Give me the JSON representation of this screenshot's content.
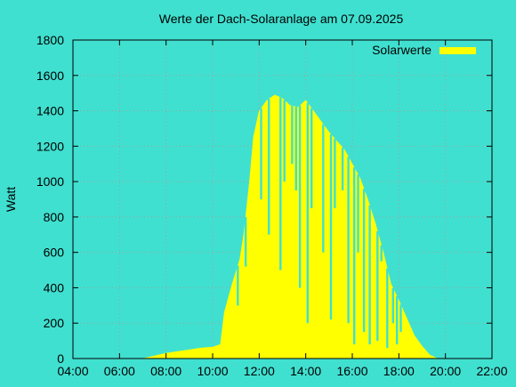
{
  "chart_data": {
    "type": "area",
    "title": "Werte der Dach-Solaranlage am 07.09.2025",
    "ylabel": "Watt",
    "xlabel": "",
    "legend": {
      "label": "Solarwerte",
      "placement": "top-right"
    },
    "colors": {
      "background": "#40E0D0",
      "series": "#FFFF00",
      "axis": "#000000",
      "grid": "#A0A0A0"
    },
    "grid": true,
    "xlim": [
      "04:00",
      "22:00"
    ],
    "ylim": [
      0,
      1800
    ],
    "xticks": [
      "04:00",
      "06:00",
      "08:00",
      "10:00",
      "12:00",
      "14:00",
      "16:00",
      "18:00",
      "20:00",
      "22:00"
    ],
    "yticks": [
      "0",
      "200",
      "400",
      "600",
      "800",
      "1000",
      "1200",
      "1400",
      "1600",
      "1800"
    ],
    "series": [
      {
        "name": "Solarwerte",
        "envelope": [
          [
            "07:00",
            0
          ],
          [
            "07:30",
            15
          ],
          [
            "08:00",
            30
          ],
          [
            "08:30",
            40
          ],
          [
            "09:00",
            50
          ],
          [
            "09:30",
            60
          ],
          [
            "10:00",
            65
          ],
          [
            "10:20",
            80
          ],
          [
            "10:30",
            260
          ],
          [
            "10:50",
            420
          ],
          [
            "11:10",
            560
          ],
          [
            "11:20",
            700
          ],
          [
            "11:35",
            1000
          ],
          [
            "11:45",
            1250
          ],
          [
            "12:00",
            1400
          ],
          [
            "12:20",
            1460
          ],
          [
            "12:40",
            1490
          ],
          [
            "13:00",
            1470
          ],
          [
            "13:20",
            1430
          ],
          [
            "13:40",
            1420
          ],
          [
            "14:00",
            1460
          ],
          [
            "14:20",
            1400
          ],
          [
            "14:40",
            1340
          ],
          [
            "15:00",
            1280
          ],
          [
            "15:20",
            1230
          ],
          [
            "15:40",
            1180
          ],
          [
            "16:00",
            1100
          ],
          [
            "16:20",
            1020
          ],
          [
            "16:40",
            900
          ],
          [
            "17:00",
            760
          ],
          [
            "17:20",
            600
          ],
          [
            "17:40",
            420
          ],
          [
            "18:00",
            330
          ],
          [
            "18:20",
            230
          ],
          [
            "18:40",
            130
          ],
          [
            "19:00",
            70
          ],
          [
            "19:20",
            20
          ],
          [
            "19:40",
            0
          ]
        ],
        "dips": [
          [
            "11:05",
            300
          ],
          [
            "11:25",
            520
          ],
          [
            "12:05",
            900
          ],
          [
            "12:25",
            700
          ],
          [
            "12:55",
            500
          ],
          [
            "13:05",
            1000
          ],
          [
            "13:25",
            1100
          ],
          [
            "13:35",
            950
          ],
          [
            "13:45",
            400
          ],
          [
            "14:05",
            200
          ],
          [
            "14:15",
            850
          ],
          [
            "14:45",
            600
          ],
          [
            "15:05",
            220
          ],
          [
            "15:15",
            850
          ],
          [
            "15:35",
            950
          ],
          [
            "15:50",
            200
          ],
          [
            "16:05",
            80
          ],
          [
            "16:15",
            600
          ],
          [
            "16:30",
            150
          ],
          [
            "16:45",
            80
          ],
          [
            "17:05",
            100
          ],
          [
            "17:15",
            550
          ],
          [
            "17:30",
            60
          ],
          [
            "17:45",
            200
          ],
          [
            "17:55",
            80
          ],
          [
            "18:05",
            150
          ]
        ]
      }
    ]
  }
}
